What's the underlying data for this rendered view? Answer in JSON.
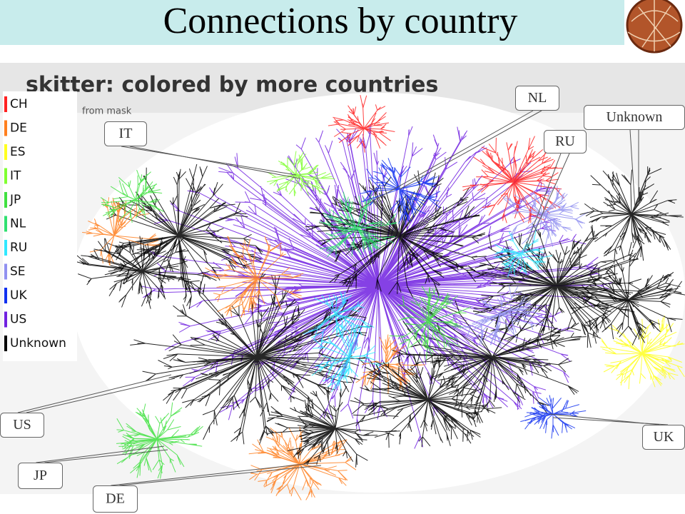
{
  "slide": {
    "title": "Connections by country",
    "image": {
      "heading": "skitter: colored by more countries",
      "subheading": "from mask",
      "legend": [
        {
          "label": "CH",
          "color": "#ff2020"
        },
        {
          "label": "DE",
          "color": "#ff7f1e"
        },
        {
          "label": "ES",
          "color": "#ffff20"
        },
        {
          "label": "IT",
          "color": "#80ff30"
        },
        {
          "label": "JP",
          "color": "#40e040"
        },
        {
          "label": "NL",
          "color": "#30e070"
        },
        {
          "label": "RU",
          "color": "#30e8ff"
        },
        {
          "label": "SE",
          "color": "#9090f0"
        },
        {
          "label": "UK",
          "color": "#1030f0"
        },
        {
          "label": "US",
          "color": "#7020e0"
        },
        {
          "label": "Unknown",
          "color": "#000000"
        }
      ]
    },
    "callouts": [
      "NL",
      "Unknown",
      "IT",
      "RU",
      "US",
      "UK",
      "JP",
      "DE"
    ]
  }
}
